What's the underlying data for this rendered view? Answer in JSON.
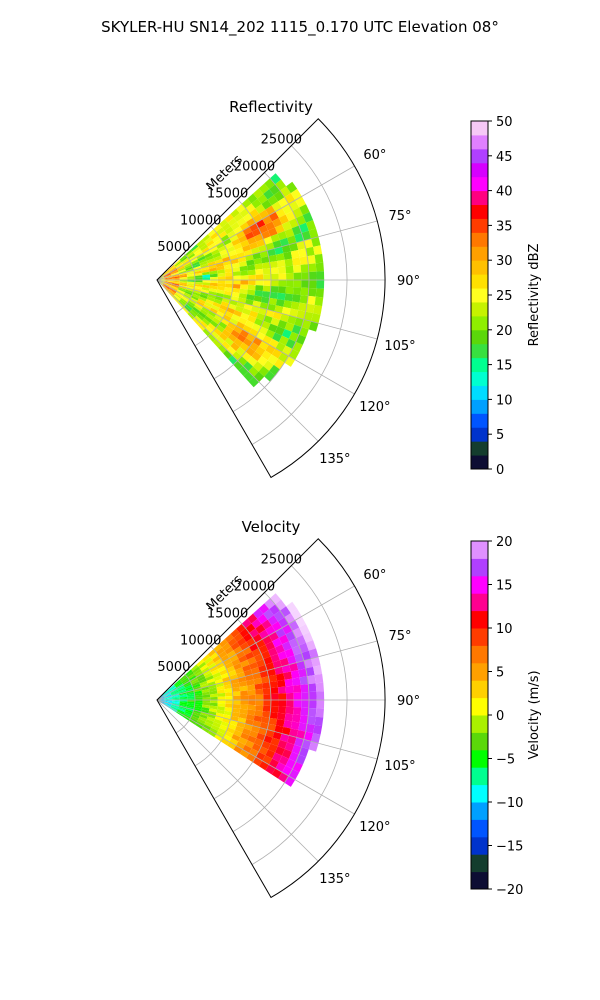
{
  "figure": {
    "suptitle": "SKYLER-HU  SN14_202  1115_0.170 UTC Elevation 08°"
  },
  "chart_data": [
    {
      "type": "polar-sector",
      "title": "Reflectivity",
      "range_label": "Meters",
      "range_ticks": [
        "5000",
        "10000",
        "15000",
        "20000",
        "25000"
      ],
      "range_values": [
        5000,
        10000,
        15000,
        20000,
        25000
      ],
      "range_max": 30000,
      "azimuth_range": [
        45,
        150
      ],
      "azimuth_ticks": [
        "60°",
        "75°",
        "90°",
        "105°",
        "120°",
        "135°"
      ],
      "azimuth_values": [
        60,
        75,
        90,
        105,
        120,
        135
      ],
      "data_azimuth_range": [
        48,
        138
      ],
      "data_range_max_m": 22000,
      "colorbar": {
        "label": "Reflectivity dBZ",
        "min": 0,
        "max": 50,
        "ticks": [
          "0",
          "5",
          "10",
          "15",
          "20",
          "25",
          "30",
          "35",
          "40",
          "45",
          "50"
        ],
        "tick_values": [
          0,
          5,
          10,
          15,
          20,
          25,
          30,
          35,
          40,
          45,
          50
        ],
        "levels": [
          {
            "v": 0,
            "color": "#0d0d33"
          },
          {
            "v": 2,
            "color": "#143d2e"
          },
          {
            "v": 4,
            "color": "#0033cc"
          },
          {
            "v": 6,
            "color": "#0055ff"
          },
          {
            "v": 8,
            "color": "#00a0ff"
          },
          {
            "v": 10,
            "color": "#00dcff"
          },
          {
            "v": 12,
            "color": "#00ffd0"
          },
          {
            "v": 14,
            "color": "#00ff90"
          },
          {
            "v": 16,
            "color": "#38e040"
          },
          {
            "v": 18,
            "color": "#5bd80a"
          },
          {
            "v": 20,
            "color": "#8fee00"
          },
          {
            "v": 22,
            "color": "#c6f200"
          },
          {
            "v": 24,
            "color": "#ffff20"
          },
          {
            "v": 26,
            "color": "#ffe000"
          },
          {
            "v": 28,
            "color": "#ffc000"
          },
          {
            "v": 30,
            "color": "#ffa000"
          },
          {
            "v": 32,
            "color": "#ff7800"
          },
          {
            "v": 34,
            "color": "#ff3c00"
          },
          {
            "v": 36,
            "color": "#ff0000"
          },
          {
            "v": 38,
            "color": "#ff0080"
          },
          {
            "v": 40,
            "color": "#ff00ff"
          },
          {
            "v": 42,
            "color": "#d600ff"
          },
          {
            "v": 44,
            "color": "#b040ff"
          },
          {
            "v": 46,
            "color": "#e080ff"
          },
          {
            "v": 48,
            "color": "#f6c8f6"
          },
          {
            "v": 50,
            "color": "#fff0ff"
          }
        ]
      }
    },
    {
      "type": "polar-sector",
      "title": "Velocity",
      "range_label": "Meters",
      "range_ticks": [
        "5000",
        "10000",
        "15000",
        "20000",
        "25000"
      ],
      "range_values": [
        5000,
        10000,
        15000,
        20000,
        25000
      ],
      "range_max": 30000,
      "azimuth_range": [
        45,
        150
      ],
      "azimuth_ticks": [
        "60°",
        "75°",
        "90°",
        "105°",
        "120°",
        "135°"
      ],
      "azimuth_values": [
        60,
        75,
        90,
        105,
        120,
        135
      ],
      "data_azimuth_range": [
        48,
        122
      ],
      "data_range_max_m": 22000,
      "colorbar": {
        "label": "Velocity (m/s)",
        "min": -20,
        "max": 20,
        "ticks": [
          "−20",
          "−15",
          "−10",
          "−5",
          "0",
          "5",
          "10",
          "15",
          "20"
        ],
        "tick_values": [
          -20,
          -15,
          -10,
          -5,
          0,
          5,
          10,
          15,
          20
        ],
        "levels": [
          {
            "v": -20,
            "color": "#0d0d33"
          },
          {
            "v": -18,
            "color": "#143d2e"
          },
          {
            "v": -16,
            "color": "#0033cc"
          },
          {
            "v": -14,
            "color": "#0055ff"
          },
          {
            "v": -12,
            "color": "#00a0ff"
          },
          {
            "v": -10,
            "color": "#00ffff"
          },
          {
            "v": -8,
            "color": "#00ff90"
          },
          {
            "v": -6,
            "color": "#00ff00"
          },
          {
            "v": -4,
            "color": "#5bd80a"
          },
          {
            "v": -2,
            "color": "#aaf000"
          },
          {
            "v": 0,
            "color": "#ffff00"
          },
          {
            "v": 2,
            "color": "#ffd000"
          },
          {
            "v": 4,
            "color": "#ffa000"
          },
          {
            "v": 6,
            "color": "#ff7800"
          },
          {
            "v": 8,
            "color": "#ff3c00"
          },
          {
            "v": 10,
            "color": "#ff0000"
          },
          {
            "v": 12,
            "color": "#ff0090"
          },
          {
            "v": 14,
            "color": "#ff00ff"
          },
          {
            "v": 16,
            "color": "#b040ff"
          },
          {
            "v": 18,
            "color": "#e090ff"
          },
          {
            "v": 20,
            "color": "#fff0ff"
          }
        ]
      }
    }
  ]
}
